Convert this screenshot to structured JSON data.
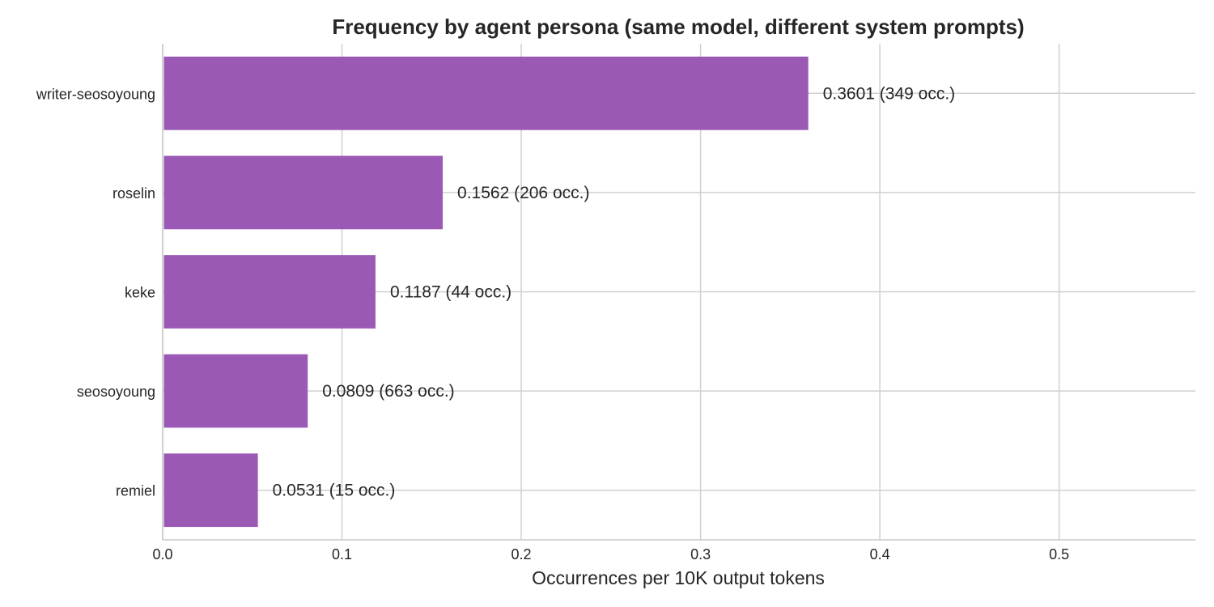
{
  "chart_data": {
    "type": "bar",
    "orientation": "horizontal",
    "title": "Frequency by agent persona (same model, different system prompts)",
    "xlabel": "Occurrences per 10K output tokens",
    "ylabel": "",
    "categories": [
      "writer-seosoyoung",
      "roselin",
      "keke",
      "seosoyoung",
      "remiel"
    ],
    "values": [
      0.3601,
      0.1562,
      0.1187,
      0.0809,
      0.0531
    ],
    "data_labels": [
      "0.3601  (349 occ.)",
      "0.1562  (206 occ.)",
      "0.1187  (44 occ.)",
      "0.0809  (663 occ.)",
      "0.0531  (15 occ.)"
    ],
    "xlim": [
      0,
      0.576
    ],
    "xticks": [
      0.0,
      0.1,
      0.2,
      0.3,
      0.4,
      0.5
    ],
    "xtick_labels": [
      "0.0",
      "0.1",
      "0.2",
      "0.3",
      "0.4",
      "0.5"
    ],
    "grid": true,
    "bar_color": "#9b59b6"
  }
}
